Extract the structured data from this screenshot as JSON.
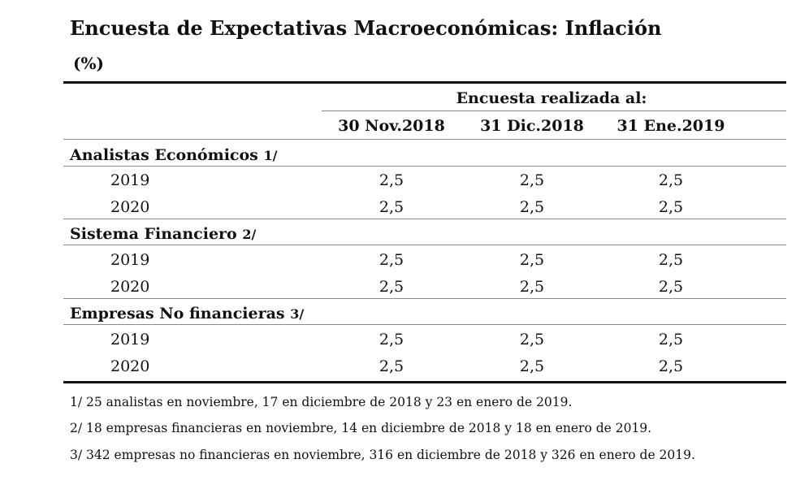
{
  "title": "Encuesta de Expectativas Macroeconómicas: Inflación",
  "unit": "(%)",
  "group_header": "Encuesta realizada al:",
  "columns": [
    "30 Nov.2018",
    "31 Dic.2018",
    "31 Ene.2019"
  ],
  "sections": [
    {
      "label": "Analistas Económicos",
      "note": "1/",
      "rows": [
        {
          "year": "2019",
          "values": [
            "2,5",
            "2,5",
            "2,5"
          ]
        },
        {
          "year": "2020",
          "values": [
            "2,5",
            "2,5",
            "2,5"
          ]
        }
      ]
    },
    {
      "label": "Sistema Financiero",
      "note": "2/",
      "rows": [
        {
          "year": "2019",
          "values": [
            "2,5",
            "2,5",
            "2,5"
          ]
        },
        {
          "year": "2020",
          "values": [
            "2,5",
            "2,5",
            "2,5"
          ]
        }
      ]
    },
    {
      "label": "Empresas No financieras",
      "note": "3/",
      "rows": [
        {
          "year": "2019",
          "values": [
            "2,5",
            "2,5",
            "2,5"
          ]
        },
        {
          "year": "2020",
          "values": [
            "2,5",
            "2,5",
            "2,5"
          ]
        }
      ]
    }
  ],
  "footnotes": [
    "1/ 25 analistas en noviembre, 17 en diciembre de 2018 y 23 en enero de 2019.",
    "2/ 18 empresas financieras en noviembre, 14 en diciembre de 2018 y 18 en enero de 2019.",
    "3/ 342 empresas no financieras en noviembre, 316 en diciembre de 2018 y 326 en enero de 2019."
  ]
}
